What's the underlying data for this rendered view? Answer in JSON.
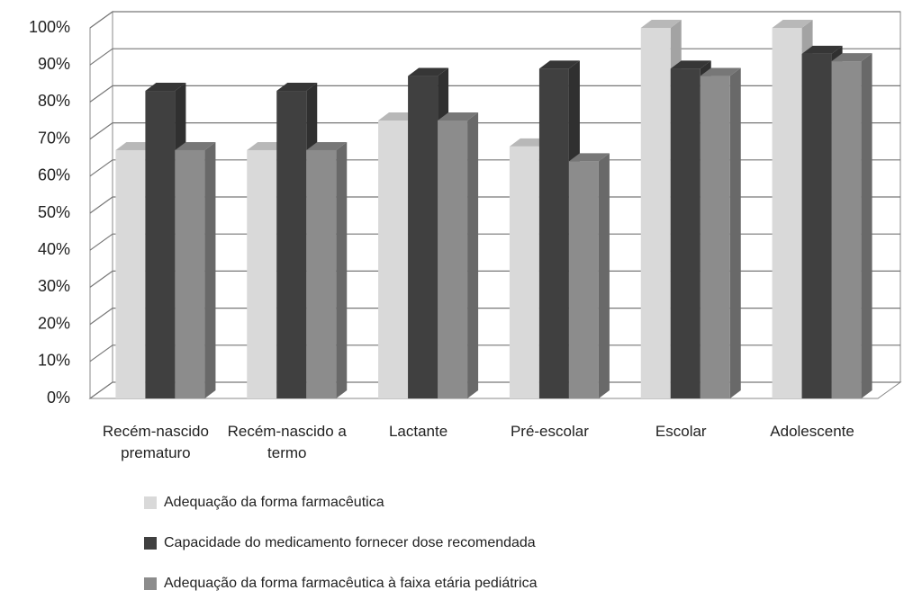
{
  "chart_data": {
    "type": "bar3d",
    "categories": [
      "Recém-nascido prematuro",
      "Recém-nascido a termo",
      "Lactante",
      "Pré-escolar",
      "Escolar",
      "Adolescente"
    ],
    "series": [
      {
        "name": "Adequação da forma farmacêutica",
        "color": "#d9d9d9",
        "values": [
          67,
          67,
          75,
          68,
          100,
          100
        ]
      },
      {
        "name": "Capacidade do medicamento fornecer dose recomendada",
        "color": "#404040",
        "values": [
          83,
          83,
          87,
          89,
          89,
          93
        ]
      },
      {
        "name": "Adequação da forma farmacêutica à faixa etária pediátrica",
        "color": "#8c8c8c",
        "values": [
          67,
          67,
          75,
          64,
          87,
          91
        ]
      }
    ],
    "ylim": [
      0,
      100
    ],
    "yticks": [
      {
        "value": 0,
        "label": "0%"
      },
      {
        "value": 10,
        "label": "10%"
      },
      {
        "value": 20,
        "label": "20%"
      },
      {
        "value": 30,
        "label": "30%"
      },
      {
        "value": 40,
        "label": "40%"
      },
      {
        "value": 50,
        "label": "50%"
      },
      {
        "value": 60,
        "label": "60%"
      },
      {
        "value": 70,
        "label": "70%"
      },
      {
        "value": 80,
        "label": "80%"
      },
      {
        "value": 90,
        "label": "90%"
      },
      {
        "value": 100,
        "label": "100%"
      }
    ],
    "grid": true,
    "legend": "bottom"
  }
}
